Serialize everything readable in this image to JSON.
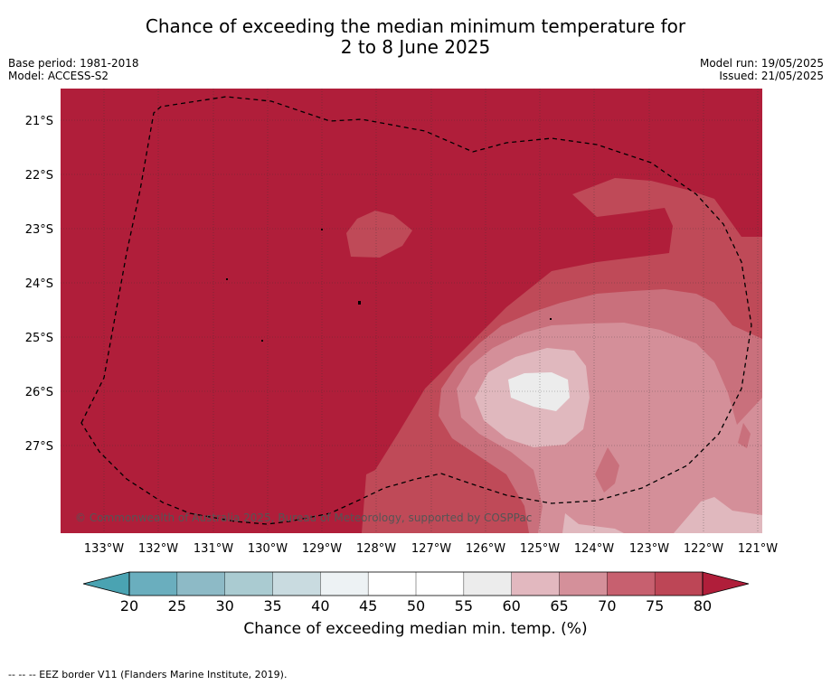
{
  "title_line1": "Chance of exceeding the median minimum temperature for",
  "title_line2": "2 to 8 June 2025",
  "base_period": "Base period: 1981-2018",
  "model": "Model: ACCESS-S2",
  "model_run": "Model run: 19/05/2025",
  "issued": "Issued: 21/05/2025",
  "copyright": "© Commonwealth of Australia 2025, Bureau of Meteorology, supported by COSPPac",
  "lat_labels": [
    "21°S",
    "22°S",
    "23°S",
    "24°S",
    "25°S",
    "26°S",
    "27°S"
  ],
  "lon_labels": [
    "133°W",
    "132°W",
    "131°W",
    "130°W",
    "129°W",
    "128°W",
    "127°W",
    "126°W",
    "125°W",
    "124°W",
    "123°W",
    "122°W",
    "121°W"
  ],
  "colorbar": {
    "label": "Chance of exceeding median min. temp. (%)",
    "ticks": [
      "20",
      "25",
      "30",
      "35",
      "40",
      "45",
      "50",
      "55",
      "60",
      "65",
      "70",
      "75",
      "80"
    ],
    "colors": [
      "#6aaebe",
      "#8dbac6",
      "#aacbd1",
      "#c9dbe0",
      "#edf2f4",
      "#ffffff",
      "#ffffff",
      "#ececec",
      "#e2b8bf",
      "#d4909a",
      "#c7606f",
      "#bd4656"
    ],
    "low_extend_color": "#4aa3b2",
    "high_extend_color": "#b01e3a"
  },
  "colors": {
    "level_80plus": "#b01e3a",
    "level_75": "#bf4a58",
    "level_70": "#c9707c",
    "level_65": "#d48f99",
    "level_60": "#e0b8be",
    "level_55": "#ececec"
  },
  "footnote": "--  --  -- EEZ border V11 (Flanders Marine Institute, 2019)."
}
